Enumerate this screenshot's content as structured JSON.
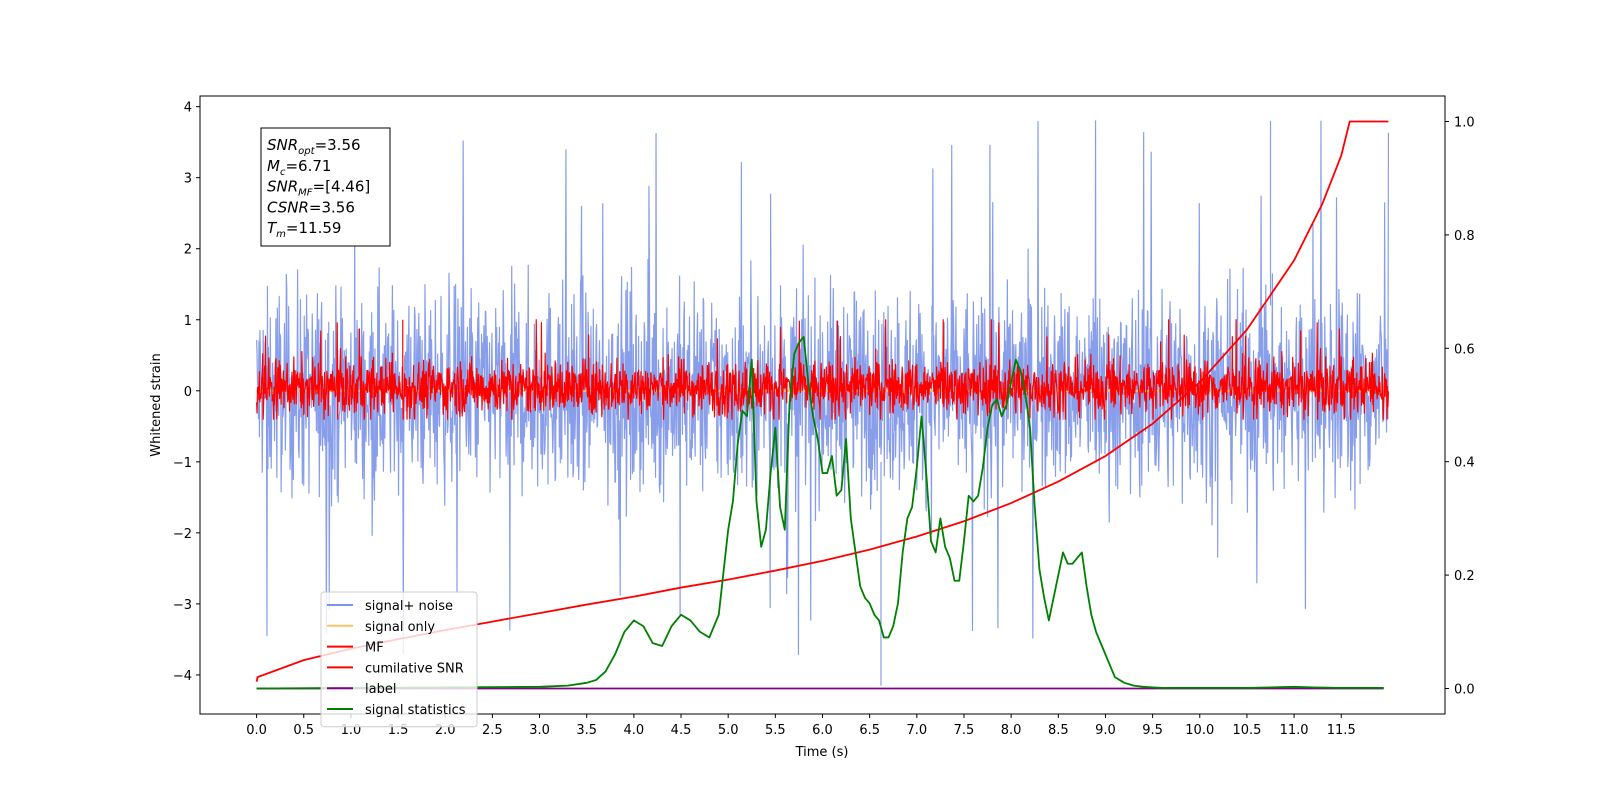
{
  "chart_data": {
    "type": "line",
    "xlabel": "Time (s)",
    "ylabel": "Whitened strain",
    "xlim": [
      -0.6,
      12.6
    ],
    "ylim": [
      -4.55,
      4.15
    ],
    "y2lim": [
      -0.045,
      1.045
    ],
    "x_ticks": [
      0.0,
      0.5,
      1.0,
      1.5,
      2.0,
      2.5,
      3.0,
      3.5,
      4.0,
      4.5,
      5.0,
      5.5,
      6.0,
      6.5,
      7.0,
      7.5,
      8.0,
      8.5,
      9.0,
      9.5,
      10.0,
      10.5,
      11.0,
      11.5
    ],
    "x_tick_labels": [
      "0.0",
      "0.5",
      "1.0",
      "1.5",
      "2.0",
      "2.5",
      "3.0",
      "3.5",
      "4.0",
      "4.5",
      "5.0",
      "5.5",
      "6.0",
      "6.5",
      "7.0",
      "7.5",
      "8.0",
      "8.5",
      "9.0",
      "9.5",
      "10.0",
      "10.5",
      "11.0",
      "11.5"
    ],
    "y_ticks": [
      -4,
      -3,
      -2,
      -1,
      0,
      1,
      2,
      3,
      4
    ],
    "y_tick_labels": [
      "−4",
      "−3",
      "−2",
      "−1",
      "0",
      "1",
      "2",
      "3",
      "4"
    ],
    "y2_ticks": [
      0.0,
      0.2,
      0.4,
      0.6,
      0.8,
      1.0
    ],
    "y2_tick_labels": [
      "0.0",
      "0.2",
      "0.4",
      "0.6",
      "0.8",
      "1.0"
    ],
    "grid": false,
    "legend_position": "lower-left",
    "legend": [
      "signal+ noise",
      "signal only",
      "MF",
      "cumilative SNR",
      "label",
      "signal statistics"
    ],
    "info_box": {
      "lines": [
        {
          "base": "SNR",
          "sub": "opt",
          "value": "=3.56"
        },
        {
          "base": "M",
          "sub": "c",
          "value": "=6.71"
        },
        {
          "base": "SNR",
          "sub": "MF",
          "value": "=[4.46]"
        },
        {
          "base": "CSNR",
          "sub": "",
          "value": "=3.56"
        },
        {
          "base": "T",
          "sub": "m",
          "value": "=11.59"
        }
      ]
    },
    "series": [
      {
        "name": "signal+ noise",
        "axis": "left",
        "color": "#7b94e8",
        "kind": "noise",
        "x_range": [
          0.0,
          12.0
        ],
        "center": 0.0,
        "band": [
          -1.3,
          1.3
        ],
        "extremes": [
          -4.15,
          3.8
        ]
      },
      {
        "name": "signal only",
        "axis": "left",
        "color": "#f5c36a",
        "kind": "flat",
        "x_range": [
          0.0,
          12.0
        ],
        "value": 0.0
      },
      {
        "name": "MF",
        "axis": "left",
        "color": "#ff0000",
        "kind": "noise",
        "x_range": [
          0.0,
          12.0
        ],
        "center": 0.0,
        "band": [
          -0.3,
          0.4
        ],
        "extremes": [
          -0.4,
          1.0
        ]
      },
      {
        "name": "cumilative SNR",
        "axis": "right",
        "color": "#ff0000",
        "x": [
          0.0,
          0.01,
          0.5,
          1.0,
          1.5,
          2.0,
          2.5,
          3.0,
          3.5,
          4.0,
          4.5,
          5.0,
          5.5,
          6.0,
          6.5,
          7.0,
          7.5,
          8.0,
          8.5,
          9.0,
          9.5,
          10.0,
          10.5,
          11.0,
          11.3,
          11.5,
          11.59,
          12.0
        ],
        "y": [
          0.012,
          0.02,
          0.05,
          0.07,
          0.087,
          0.103,
          0.118,
          0.133,
          0.148,
          0.162,
          0.178,
          0.192,
          0.208,
          0.225,
          0.245,
          0.268,
          0.295,
          0.327,
          0.365,
          0.41,
          0.467,
          0.54,
          0.633,
          0.755,
          0.855,
          0.94,
          1.0,
          1.0
        ]
      },
      {
        "name": "label",
        "axis": "right",
        "color": "#800080",
        "x": [
          0.0,
          11.95
        ],
        "y": [
          0.0,
          0.0
        ]
      },
      {
        "name": "signal statistics",
        "axis": "right",
        "color": "#008000",
        "x": [
          0.0,
          1.0,
          2.0,
          3.0,
          3.3,
          3.5,
          3.6,
          3.7,
          3.8,
          3.9,
          4.0,
          4.1,
          4.2,
          4.3,
          4.4,
          4.5,
          4.6,
          4.7,
          4.8,
          4.9,
          5.0,
          5.05,
          5.1,
          5.15,
          5.2,
          5.25,
          5.3,
          5.35,
          5.4,
          5.45,
          5.5,
          5.55,
          5.6,
          5.65,
          5.7,
          5.75,
          5.8,
          5.85,
          5.9,
          5.95,
          6.0,
          6.05,
          6.1,
          6.15,
          6.2,
          6.25,
          6.3,
          6.35,
          6.4,
          6.45,
          6.5,
          6.55,
          6.6,
          6.65,
          6.7,
          6.75,
          6.8,
          6.85,
          6.9,
          6.95,
          7.0,
          7.05,
          7.1,
          7.15,
          7.2,
          7.25,
          7.3,
          7.35,
          7.4,
          7.45,
          7.5,
          7.55,
          7.6,
          7.65,
          7.7,
          7.75,
          7.8,
          7.85,
          7.9,
          7.95,
          8.0,
          8.05,
          8.1,
          8.15,
          8.2,
          8.25,
          8.3,
          8.35,
          8.4,
          8.45,
          8.5,
          8.55,
          8.6,
          8.65,
          8.7,
          8.75,
          8.8,
          8.85,
          8.9,
          8.95,
          9.0,
          9.05,
          9.1,
          9.2,
          9.3,
          9.4,
          9.5,
          9.6,
          9.8,
          10.0,
          10.5,
          11.0,
          11.2,
          11.5,
          11.95
        ],
        "y": [
          0.0,
          0.001,
          0.002,
          0.003,
          0.005,
          0.01,
          0.015,
          0.03,
          0.06,
          0.1,
          0.12,
          0.11,
          0.08,
          0.075,
          0.11,
          0.13,
          0.12,
          0.1,
          0.09,
          0.13,
          0.28,
          0.33,
          0.43,
          0.49,
          0.48,
          0.58,
          0.33,
          0.25,
          0.28,
          0.38,
          0.46,
          0.32,
          0.28,
          0.5,
          0.59,
          0.61,
          0.62,
          0.54,
          0.48,
          0.44,
          0.38,
          0.38,
          0.41,
          0.34,
          0.35,
          0.44,
          0.3,
          0.24,
          0.18,
          0.16,
          0.15,
          0.13,
          0.12,
          0.09,
          0.09,
          0.11,
          0.15,
          0.24,
          0.3,
          0.32,
          0.39,
          0.48,
          0.38,
          0.26,
          0.24,
          0.3,
          0.25,
          0.23,
          0.19,
          0.19,
          0.26,
          0.34,
          0.33,
          0.34,
          0.39,
          0.46,
          0.5,
          0.51,
          0.48,
          0.5,
          0.54,
          0.58,
          0.56,
          0.52,
          0.46,
          0.32,
          0.21,
          0.16,
          0.12,
          0.16,
          0.2,
          0.24,
          0.22,
          0.22,
          0.23,
          0.24,
          0.18,
          0.13,
          0.1,
          0.08,
          0.06,
          0.04,
          0.02,
          0.01,
          0.005,
          0.003,
          0.002,
          0.001,
          0.001,
          0.001,
          0.001,
          0.003,
          0.002,
          0.001,
          0.001
        ]
      }
    ]
  }
}
